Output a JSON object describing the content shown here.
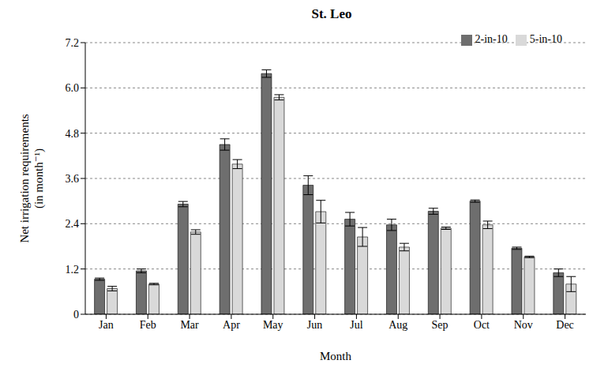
{
  "chart_data": {
    "type": "bar",
    "title": "St. Leo",
    "x_label": "Month",
    "y_label": [
      "Net irrigation requirements",
      "(in month⁻¹)"
    ],
    "categories": [
      "Jan",
      "Feb",
      "Mar",
      "Apr",
      "May",
      "Jun",
      "Jul",
      "Aug",
      "Sep",
      "Oct",
      "Nov",
      "Dec"
    ],
    "series": [
      {
        "name": "2-in-10",
        "color": "#6e6e6e",
        "values": [
          0.93,
          1.15,
          2.92,
          4.5,
          6.38,
          3.42,
          2.52,
          2.37,
          2.73,
          3.0,
          1.75,
          1.1
        ],
        "errors": [
          0.03,
          0.05,
          0.07,
          0.15,
          0.1,
          0.25,
          0.18,
          0.15,
          0.08,
          0.03,
          0.03,
          0.1
        ]
      },
      {
        "name": "5-in-10",
        "color": "#d9d9d9",
        "values": [
          0.68,
          0.8,
          2.18,
          3.98,
          5.75,
          2.72,
          2.05,
          1.78,
          2.28,
          2.37,
          1.52,
          0.8
        ],
        "errors": [
          0.06,
          0.02,
          0.06,
          0.12,
          0.07,
          0.3,
          0.25,
          0.1,
          0.03,
          0.1,
          0.02,
          0.2
        ]
      }
    ],
    "ylim": [
      0,
      7.2
    ],
    "yticks": [
      0,
      1.2,
      2.4,
      3.6,
      4.8,
      {
        "value": 6,
        "label": "6.0"
      },
      7.2
    ],
    "grid": true,
    "legend": "upper right"
  }
}
